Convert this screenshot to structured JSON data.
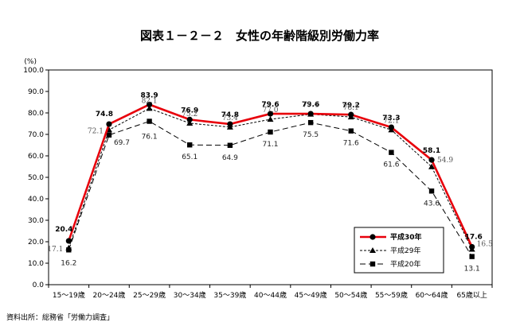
{
  "title": "図表１－２－２　女性の年齢階級別労働力率",
  "source": "資料出所：総務省「労働力調査」",
  "chart_data": {
    "type": "line",
    "unit_label": "(%)",
    "categories": [
      "15～19歳",
      "20～24歳",
      "25～29歳",
      "30～34歳",
      "35～39歳",
      "40～44歳",
      "45～49歳",
      "50～54歳",
      "55～59歳",
      "60～64歳",
      "65歳以上"
    ],
    "ylim": [
      0,
      100
    ],
    "ytick_labels": [
      "0.0",
      "10.0",
      "20.0",
      "30.0",
      "40.0",
      "50.0",
      "60.0",
      "70.0",
      "80.0",
      "90.0",
      "100.0"
    ],
    "legend_position": "bottom-right",
    "series": [
      {
        "name": "平成30年",
        "color": "#e8000b",
        "marker": "circle",
        "dash": "solid",
        "values": [
          20.4,
          74.8,
          83.9,
          76.9,
          74.8,
          79.6,
          79.6,
          79.2,
          73.3,
          58.1,
          17.6
        ]
      },
      {
        "name": "平成29年",
        "color": "#000000",
        "marker": "triangle",
        "dash": "dashed",
        "values": [
          17.1,
          72.1,
          82.1,
          75.2,
          73.4,
          77.0,
          79.4,
          78.1,
          72.1,
          54.9,
          16.5
        ]
      },
      {
        "name": "平成20年",
        "color": "#000000",
        "marker": "square",
        "dash": "longdash",
        "values": [
          16.2,
          69.7,
          76.1,
          65.1,
          64.9,
          71.1,
          75.5,
          71.6,
          61.6,
          43.6,
          13.1
        ]
      }
    ]
  }
}
